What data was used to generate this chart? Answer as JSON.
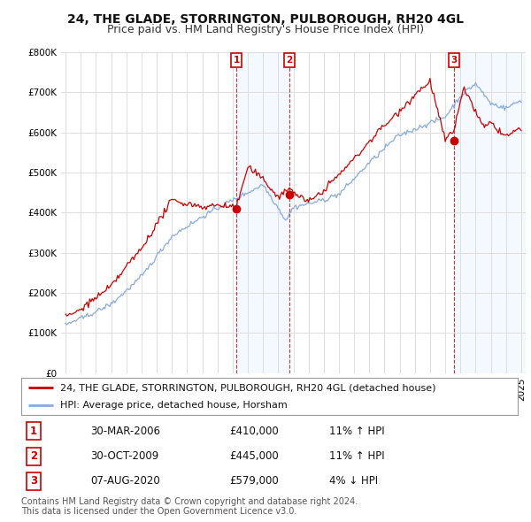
{
  "title": "24, THE GLADE, STORRINGTON, PULBOROUGH, RH20 4GL",
  "subtitle": "Price paid vs. HM Land Registry's House Price Index (HPI)",
  "ylim": [
    0,
    800000
  ],
  "yticks": [
    0,
    100000,
    200000,
    300000,
    400000,
    500000,
    600000,
    700000,
    800000
  ],
  "ytick_labels": [
    "£0",
    "£100K",
    "£200K",
    "£300K",
    "£400K",
    "£500K",
    "£600K",
    "£700K",
    "£800K"
  ],
  "xlim_start": 1994.7,
  "xlim_end": 2025.3,
  "bg_color": "#ffffff",
  "shade_color": "#ddeeff",
  "grid_color": "#dddddd",
  "red_color": "#cc0000",
  "blue_color": "#88aadd",
  "sale1_year": 2006.25,
  "sale1_price": 410000,
  "sale2_year": 2009.75,
  "sale2_price": 445000,
  "sale3_year": 2020.58,
  "sale3_price": 579000,
  "legend_label_red": "24, THE GLADE, STORRINGTON, PULBOROUGH, RH20 4GL (detached house)",
  "legend_label_blue": "HPI: Average price, detached house, Horsham",
  "table_entries": [
    {
      "num": "1",
      "date": "30-MAR-2006",
      "price": "£410,000",
      "hpi": "11% ↑ HPI"
    },
    {
      "num": "2",
      "date": "30-OCT-2009",
      "price": "£445,000",
      "hpi": "11% ↑ HPI"
    },
    {
      "num": "3",
      "date": "07-AUG-2020",
      "price": "£579,000",
      "hpi": "4% ↓ HPI"
    }
  ],
  "footer": "Contains HM Land Registry data © Crown copyright and database right 2024.\nThis data is licensed under the Open Government Licence v3.0.",
  "title_fontsize": 10,
  "subtitle_fontsize": 9,
  "tick_fontsize": 7.5,
  "legend_fontsize": 8,
  "table_fontsize": 8.5
}
